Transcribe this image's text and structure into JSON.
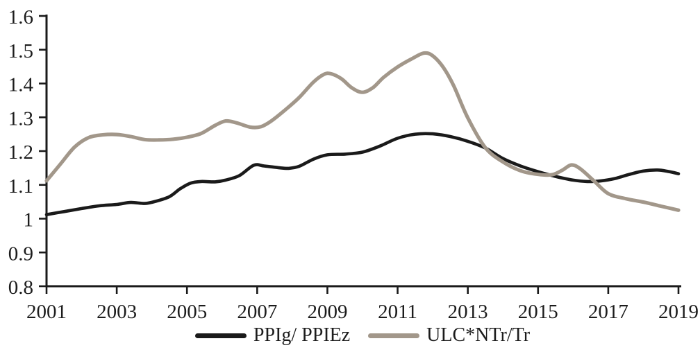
{
  "chart_data": {
    "type": "line",
    "title": "",
    "xlabel": "",
    "ylabel": "",
    "grid": false,
    "legend_position": "bottom",
    "axis_color": "#1a1a1a",
    "text_color": "#1c1c1c",
    "background": "#ffffff",
    "x_axis": {
      "range": [
        2001,
        2019
      ],
      "tick_values": [
        2001,
        2003,
        2005,
        2007,
        2009,
        2011,
        2013,
        2015,
        2017,
        2019
      ],
      "ticks": [
        "2001",
        "2003",
        "2005",
        "2007",
        "2009",
        "2011",
        "2013",
        "2015",
        "2017",
        "2019"
      ]
    },
    "y_axis": {
      "range": [
        0.8,
        1.6
      ],
      "tick_values": [
        0.8,
        0.9,
        1.0,
        1.1,
        1.2,
        1.3,
        1.4,
        1.5,
        1.6
      ],
      "ticks": [
        "0.8",
        "0.9",
        "1",
        "1.1",
        "1.2",
        "1.3",
        "1.4",
        "1.5",
        "1.6"
      ]
    },
    "series": [
      {
        "name": "PPIg/ PPIEz",
        "color": "#1a1a1a",
        "stroke_width": 4.6,
        "points": [
          [
            2001.0,
            1.012
          ],
          [
            2001.5,
            1.021
          ],
          [
            2002.0,
            1.03
          ],
          [
            2002.5,
            1.038
          ],
          [
            2003.0,
            1.042
          ],
          [
            2003.4,
            1.048
          ],
          [
            2003.8,
            1.045
          ],
          [
            2004.1,
            1.051
          ],
          [
            2004.5,
            1.065
          ],
          [
            2004.8,
            1.088
          ],
          [
            2005.1,
            1.105
          ],
          [
            2005.4,
            1.11
          ],
          [
            2005.8,
            1.109
          ],
          [
            2006.1,
            1.114
          ],
          [
            2006.5,
            1.128
          ],
          [
            2006.9,
            1.158
          ],
          [
            2007.2,
            1.156
          ],
          [
            2007.6,
            1.151
          ],
          [
            2007.9,
            1.149
          ],
          [
            2008.2,
            1.155
          ],
          [
            2008.6,
            1.176
          ],
          [
            2009.0,
            1.189
          ],
          [
            2009.5,
            1.191
          ],
          [
            2010.0,
            1.197
          ],
          [
            2010.5,
            1.215
          ],
          [
            2011.0,
            1.238
          ],
          [
            2011.5,
            1.25
          ],
          [
            2012.0,
            1.251
          ],
          [
            2012.5,
            1.243
          ],
          [
            2013.0,
            1.229
          ],
          [
            2013.5,
            1.209
          ],
          [
            2014.0,
            1.178
          ],
          [
            2014.5,
            1.156
          ],
          [
            2015.0,
            1.139
          ],
          [
            2015.5,
            1.125
          ],
          [
            2016.0,
            1.114
          ],
          [
            2016.4,
            1.11
          ],
          [
            2016.8,
            1.112
          ],
          [
            2017.2,
            1.119
          ],
          [
            2017.6,
            1.131
          ],
          [
            2018.0,
            1.141
          ],
          [
            2018.4,
            1.144
          ],
          [
            2018.7,
            1.14
          ],
          [
            2019.0,
            1.133
          ]
        ]
      },
      {
        "name": "ULC*NTr/Tr",
        "color": "#a2978a",
        "stroke_width": 5.2,
        "points": [
          [
            2001.0,
            1.112
          ],
          [
            2001.4,
            1.162
          ],
          [
            2001.8,
            1.212
          ],
          [
            2002.2,
            1.24
          ],
          [
            2002.6,
            1.248
          ],
          [
            2003.0,
            1.249
          ],
          [
            2003.4,
            1.243
          ],
          [
            2003.8,
            1.234
          ],
          [
            2004.2,
            1.233
          ],
          [
            2004.6,
            1.235
          ],
          [
            2005.0,
            1.241
          ],
          [
            2005.4,
            1.252
          ],
          [
            2005.8,
            1.276
          ],
          [
            2006.1,
            1.289
          ],
          [
            2006.4,
            1.284
          ],
          [
            2006.8,
            1.271
          ],
          [
            2007.1,
            1.272
          ],
          [
            2007.4,
            1.289
          ],
          [
            2007.8,
            1.322
          ],
          [
            2008.2,
            1.359
          ],
          [
            2008.6,
            1.404
          ],
          [
            2008.9,
            1.427
          ],
          [
            2009.1,
            1.429
          ],
          [
            2009.4,
            1.414
          ],
          [
            2009.7,
            1.387
          ],
          [
            2010.0,
            1.374
          ],
          [
            2010.3,
            1.388
          ],
          [
            2010.6,
            1.418
          ],
          [
            2011.0,
            1.449
          ],
          [
            2011.4,
            1.473
          ],
          [
            2011.75,
            1.49
          ],
          [
            2012.0,
            1.482
          ],
          [
            2012.3,
            1.448
          ],
          [
            2012.6,
            1.393
          ],
          [
            2013.0,
            1.298
          ],
          [
            2013.5,
            1.21
          ],
          [
            2014.0,
            1.168
          ],
          [
            2014.5,
            1.142
          ],
          [
            2015.0,
            1.131
          ],
          [
            2015.4,
            1.13
          ],
          [
            2015.7,
            1.144
          ],
          [
            2015.95,
            1.159
          ],
          [
            2016.2,
            1.148
          ],
          [
            2016.6,
            1.111
          ],
          [
            2017.0,
            1.074
          ],
          [
            2017.5,
            1.059
          ],
          [
            2018.0,
            1.049
          ],
          [
            2018.5,
            1.037
          ],
          [
            2019.0,
            1.025
          ]
        ]
      }
    ]
  }
}
